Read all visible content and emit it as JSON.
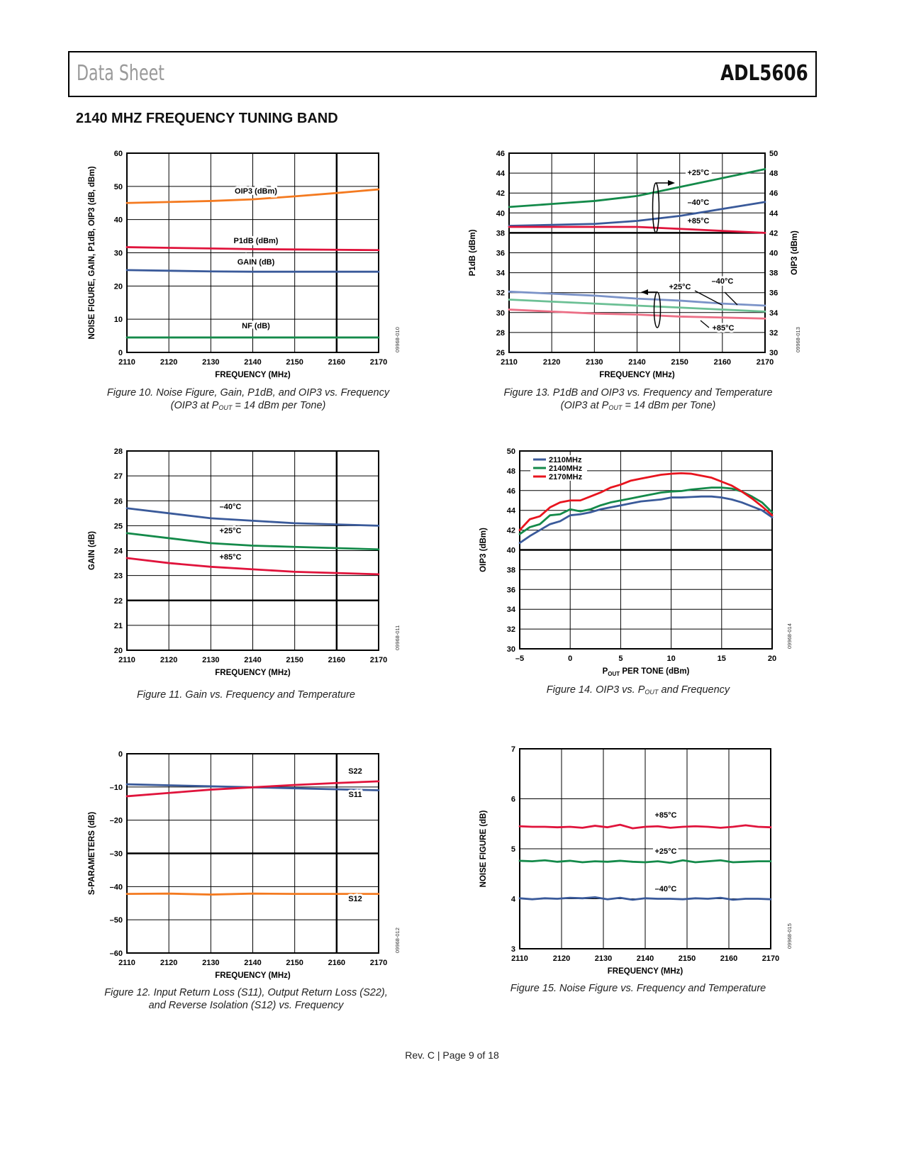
{
  "header": {
    "left": "Data Sheet",
    "right": "ADL5606"
  },
  "section_title": "2140 MHZ FREQUENCY TUNING BAND",
  "footer": "Rev. C | Page 9 of 18",
  "captions": [
    {
      "line1": "Figure 10. Noise Figure, Gain, P1dB, and OIP3 vs. Frequency",
      "line2_pre": "(OIP3 at P",
      "line2_sub": "OUT",
      "line2_post": " = 14 dBm per Tone)"
    },
    {
      "line1": "Figure 13. P1dB and OIP3 vs. Frequency and Temperature",
      "line2_pre": "(OIP3 at P",
      "line2_sub": "OUT",
      "line2_post": " = 14 dBm per Tone)"
    },
    {
      "line1": "Figure 11. Gain vs. Frequency and Temperature"
    },
    {
      "line1_pre": "Figure 14. OIP3 vs. P",
      "line1_sub": "OUT",
      "line1_post": " and Frequency"
    },
    {
      "line1": "Figure 12. Input Return Loss (S11), Output Return Loss (S22),",
      "line2_pre": "and Reverse Isolation (S12) vs. Frequency",
      "line2_sub": "",
      "line2_post": ""
    },
    {
      "line1": "Figure 15. Noise Figure vs. Frequency and Temperature"
    }
  ],
  "chart_data": [
    {
      "type": "line",
      "code": "09968-010",
      "xlabel": "FREQUENCY (MHz)",
      "ylabel": "NOISE FIGURE, GAIN, P1dB, OIP3 (dB, dBm)",
      "xlim": [
        2110,
        2170
      ],
      "ylim": [
        0,
        60
      ],
      "xticks": [
        "2110",
        "2120",
        "2130",
        "2140",
        "2150",
        "2160",
        "2170"
      ],
      "yticks": [
        "0",
        "10",
        "20",
        "30",
        "40",
        "50",
        "60"
      ],
      "x": [
        2110,
        2120,
        2130,
        2140,
        2150,
        2160,
        2170
      ],
      "series": [
        {
          "name": "OIP3 (dBm)",
          "color": "#f47a20",
          "y": [
            45,
            45.3,
            45.6,
            46.1,
            47,
            48,
            49.1
          ]
        },
        {
          "name": "P1dB (dBm)",
          "color": "#e0143c",
          "y": [
            31.7,
            31.5,
            31.3,
            31.1,
            31,
            30.9,
            30.8
          ]
        },
        {
          "name": "GAIN (dB)",
          "color": "#3a5a9a",
          "y": [
            24.8,
            24.6,
            24.4,
            24.3,
            24.3,
            24.3,
            24.3
          ]
        },
        {
          "name": "NF (dB)",
          "color": "#148a4a",
          "y": [
            4.5,
            4.5,
            4.5,
            4.5,
            4.5,
            4.5,
            4.5
          ]
        }
      ],
      "annotations": [
        "OIP3 (dBm)",
        "P1dB (dBm)",
        "GAIN (dB)",
        "NF (dB)"
      ]
    },
    {
      "type": "line",
      "code": "09968-013",
      "xlabel": "FREQUENCY (MHz)",
      "ylabel": "P1dB (dBm)",
      "y2label": "OIP3 (dBm)",
      "xlim": [
        2110,
        2170
      ],
      "ylim": [
        26,
        46
      ],
      "y2lim": [
        30,
        50
      ],
      "xticks": [
        "2110",
        "2120",
        "2130",
        "2140",
        "2150",
        "2160",
        "2170"
      ],
      "yticks": [
        "26",
        "28",
        "30",
        "32",
        "34",
        "36",
        "38",
        "40",
        "42",
        "44",
        "46"
      ],
      "y2ticks": [
        "30",
        "32",
        "34",
        "36",
        "38",
        "40",
        "42",
        "44",
        "46",
        "48",
        "50"
      ],
      "x": [
        2110,
        2120,
        2130,
        2140,
        2150,
        2160,
        2170
      ],
      "series": [
        {
          "name": "OIP3 +25°C",
          "axis": "right",
          "color": "#148a4a",
          "y": [
            44.6,
            44.9,
            45.2,
            45.7,
            46.6,
            47.5,
            48.4
          ]
        },
        {
          "name": "OIP3 –40°C",
          "axis": "right",
          "color": "#3a5a9a",
          "y": [
            42.7,
            42.8,
            42.9,
            43.2,
            43.7,
            44.4,
            45.1
          ]
        },
        {
          "name": "OIP3 +85°C",
          "axis": "right",
          "color": "#e0143c",
          "y": [
            42.6,
            42.6,
            42.6,
            42.6,
            42.4,
            42.2,
            42.0
          ]
        },
        {
          "name": "P1dB –40°C",
          "axis": "left",
          "color": "#7b93c8",
          "y": [
            32.1,
            31.9,
            31.7,
            31.4,
            31.2,
            30.9,
            30.7
          ]
        },
        {
          "name": "P1dB +25°C",
          "axis": "left",
          "color": "#6cc095",
          "y": [
            31.3,
            31.1,
            30.9,
            30.7,
            30.5,
            30.3,
            30.1
          ]
        },
        {
          "name": "P1dB +85°C",
          "axis": "left",
          "color": "#ec6f86",
          "y": [
            30.3,
            30.1,
            29.9,
            29.8,
            29.6,
            29.5,
            29.4
          ]
        }
      ],
      "annotations": [
        "+25°C",
        "–40°C",
        "+85°C",
        "+25°C",
        "–40°C",
        "+85°C"
      ]
    },
    {
      "type": "line",
      "code": "09968-011",
      "xlabel": "FREQUENCY (MHz)",
      "ylabel": "GAIN (dB)",
      "xlim": [
        2110,
        2170
      ],
      "ylim": [
        20,
        28
      ],
      "xticks": [
        "2110",
        "2120",
        "2130",
        "2140",
        "2150",
        "2160",
        "2170"
      ],
      "yticks": [
        "20",
        "21",
        "22",
        "23",
        "24",
        "25",
        "26",
        "27",
        "28"
      ],
      "x": [
        2110,
        2120,
        2130,
        2140,
        2150,
        2160,
        2170
      ],
      "series": [
        {
          "name": "–40°C",
          "color": "#3a5a9a",
          "y": [
            25.7,
            25.5,
            25.3,
            25.2,
            25.1,
            25.05,
            25.0
          ]
        },
        {
          "name": "+25°C",
          "color": "#148a4a",
          "y": [
            24.7,
            24.5,
            24.3,
            24.2,
            24.15,
            24.1,
            24.05
          ]
        },
        {
          "name": "+85°C",
          "color": "#e0143c",
          "y": [
            23.7,
            23.5,
            23.35,
            23.25,
            23.15,
            23.1,
            23.05
          ]
        }
      ],
      "annotations": [
        "–40°C",
        "+25°C",
        "+85°C"
      ]
    },
    {
      "type": "line",
      "code": "09968-014",
      "xlabel_pre": "P",
      "xlabel_sub": "OUT",
      "xlabel_post": " PER TONE (dBm)",
      "ylabel": "OIP3 (dBm)",
      "xlim": [
        -5,
        20
      ],
      "ylim": [
        30,
        50
      ],
      "xticks": [
        "–5",
        "0",
        "5",
        "10",
        "15",
        "20"
      ],
      "yticks": [
        "30",
        "32",
        "34",
        "36",
        "38",
        "40",
        "42",
        "44",
        "46",
        "48",
        "50"
      ],
      "x": [
        -5,
        -4,
        -3,
        -2,
        -1,
        0,
        1,
        2,
        3,
        4,
        5,
        6,
        7,
        8,
        9,
        10,
        11,
        12,
        13,
        14,
        15,
        16,
        17,
        18,
        19,
        20
      ],
      "series": [
        {
          "name": "2110MHz",
          "color": "#3a5a9a",
          "y": [
            40.7,
            41.4,
            42.0,
            42.6,
            42.9,
            43.5,
            43.6,
            43.8,
            44.1,
            44.3,
            44.5,
            44.7,
            44.9,
            45.0,
            45.1,
            45.3,
            45.3,
            45.35,
            45.4,
            45.4,
            45.3,
            45.1,
            44.8,
            44.4,
            44.0,
            43.3
          ]
        },
        {
          "name": "2140MHz",
          "color": "#148a4a",
          "y": [
            41.6,
            42.3,
            42.6,
            43.5,
            43.6,
            44.1,
            43.9,
            44.1,
            44.5,
            44.8,
            45.0,
            45.2,
            45.4,
            45.6,
            45.8,
            45.9,
            45.95,
            46.1,
            46.2,
            46.3,
            46.3,
            46.2,
            45.9,
            45.4,
            44.8,
            43.8
          ]
        },
        {
          "name": "2170MHz",
          "color": "#e8141e",
          "y": [
            42.0,
            43.1,
            43.4,
            44.3,
            44.8,
            45.0,
            45.0,
            45.4,
            45.8,
            46.3,
            46.6,
            47.0,
            47.2,
            47.4,
            47.6,
            47.7,
            47.75,
            47.7,
            47.5,
            47.3,
            46.9,
            46.5,
            45.9,
            45.2,
            44.4,
            43.5
          ]
        }
      ],
      "legend": "top-left"
    },
    {
      "type": "line",
      "code": "09968-012",
      "xlabel": "FREQUENCY (MHz)",
      "ylabel": "S-PARAMETERS (dB)",
      "xlim": [
        2110,
        2170
      ],
      "ylim": [
        -60,
        0
      ],
      "xticks": [
        "2110",
        "2120",
        "2130",
        "2140",
        "2150",
        "2160",
        "2170"
      ],
      "yticks": [
        "–60",
        "–50",
        "–40",
        "–30",
        "–20",
        "–10",
        "0"
      ],
      "x": [
        2110,
        2120,
        2130,
        2140,
        2150,
        2160,
        2170
      ],
      "series": [
        {
          "name": "S11",
          "color": "#3a5a9a",
          "y": [
            -9.2,
            -9.5,
            -9.8,
            -10.1,
            -10.4,
            -10.7,
            -11.0
          ]
        },
        {
          "name": "S22",
          "color": "#e0143c",
          "y": [
            -12.8,
            -11.8,
            -10.8,
            -10.1,
            -9.4,
            -8.8,
            -8.3
          ]
        },
        {
          "name": "S12",
          "color": "#f47a20",
          "y": [
            -42.2,
            -42.1,
            -42.4,
            -42.1,
            -42.2,
            -42.2,
            -42.2
          ]
        }
      ],
      "annotations": [
        "S22",
        "S11",
        "S12"
      ]
    },
    {
      "type": "line",
      "code": "09968-015",
      "xlabel": "FREQUENCY (MHz)",
      "ylabel": "NOISE FIGURE (dB)",
      "xlim": [
        2110,
        2170
      ],
      "ylim": [
        3,
        7
      ],
      "xticks": [
        "2110",
        "2120",
        "2130",
        "2140",
        "2150",
        "2160",
        "2170"
      ],
      "yticks": [
        "3",
        "4",
        "5",
        "6",
        "7"
      ],
      "x": [
        2110,
        2113,
        2116,
        2119,
        2122,
        2125,
        2128,
        2131,
        2134,
        2137,
        2140,
        2143,
        2146,
        2149,
        2152,
        2155,
        2158,
        2161,
        2164,
        2167,
        2170
      ],
      "series": [
        {
          "name": "+85°C",
          "color": "#e0143c",
          "y": [
            5.45,
            5.44,
            5.44,
            5.43,
            5.44,
            5.42,
            5.46,
            5.43,
            5.48,
            5.41,
            5.44,
            5.45,
            5.42,
            5.44,
            5.45,
            5.44,
            5.42,
            5.44,
            5.47,
            5.44,
            5.43
          ]
        },
        {
          "name": "+25°C",
          "color": "#148a4a",
          "y": [
            4.76,
            4.75,
            4.77,
            4.74,
            4.76,
            4.73,
            4.75,
            4.74,
            4.76,
            4.74,
            4.73,
            4.75,
            4.72,
            4.77,
            4.73,
            4.75,
            4.77,
            4.73,
            4.74,
            4.75,
            4.75
          ]
        },
        {
          "name": "–40°C",
          "color": "#3a5a9a",
          "y": [
            4.01,
            3.99,
            4.01,
            4.0,
            4.02,
            4.01,
            4.03,
            3.99,
            4.02,
            3.98,
            4.01,
            4.0,
            4.0,
            3.99,
            4.01,
            4.0,
            4.02,
            3.98,
            4.0,
            4.0,
            3.99
          ]
        }
      ],
      "annotations": [
        "+85°C",
        "+25°C",
        "–40°C"
      ]
    }
  ]
}
